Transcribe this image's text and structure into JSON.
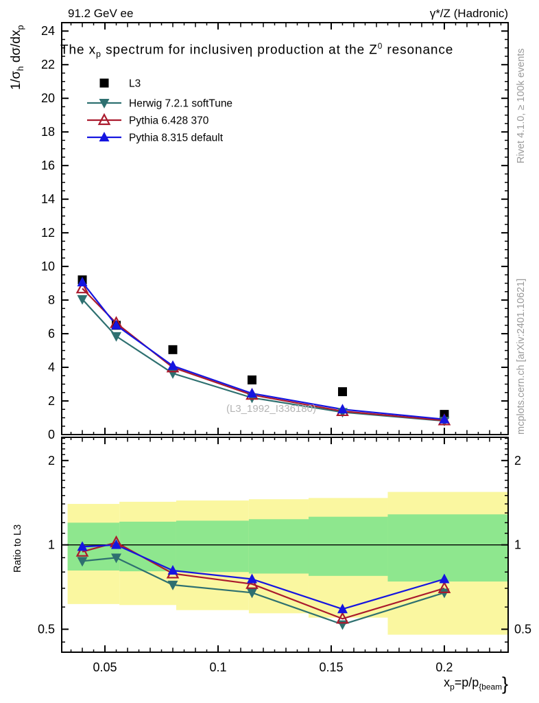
{
  "header": {
    "left_label": "91.2 GeV ee",
    "right_label": "γ*/Z (Hadronic)"
  },
  "side_captions": {
    "right_top": "Rivet 4.1.0, ≥ 100k events",
    "right_bottom": "mcplots.cern.ch [arXiv:2401.10621]"
  },
  "watermark": "(L3_1992_I336180)",
  "labels": {
    "title_parts": [
      [
        "t",
        "The x"
      ],
      [
        "sub",
        "p"
      ],
      [
        "t",
        " spectrum for inclusiveη production at the Z"
      ],
      [
        "sup",
        "0"
      ],
      [
        "t",
        " resonance"
      ]
    ],
    "ylabel_top_parts": [
      [
        "t",
        "1/σ"
      ],
      [
        "sub",
        "h"
      ],
      [
        "t",
        "  dσ/dx"
      ],
      [
        "sub",
        "p"
      ]
    ],
    "ylabel_ratio": "Ratio to L3",
    "xlabel_parts": [
      [
        "t",
        "x"
      ],
      [
        "sub",
        "p"
      ],
      [
        "t",
        "=p/p"
      ],
      [
        "sub",
        "{beam"
      ],
      [
        "big",
        "}"
      ]
    ]
  },
  "colors": {
    "axis": "#000000",
    "l3": "#000000",
    "herwig": "#2e7070",
    "pythia6": "#aa1a2d",
    "pythia8": "#1515e0",
    "band_yellow": "#FAF7A0",
    "band_green": "#8EE78E",
    "caption_gray": "#9a9a9a",
    "watermark_gray": "#b4b4b4"
  },
  "legend": {
    "items": [
      "L3",
      "Herwig 7.2.1 softTune",
      "Pythia 6.428 370",
      "Pythia 8.315 default"
    ]
  },
  "chart_data": [
    {
      "type": "line",
      "panel": "spectrum",
      "title": "The x_p spectrum for inclusive η production at the Z0 resonance",
      "xlim": [
        0.0309,
        0.2282
      ],
      "ylim": [
        0,
        24.5
      ],
      "x_ticks": {
        "major": [
          0.05,
          0.1,
          0.15,
          0.2
        ],
        "medium_step": 0.01,
        "minor_step": 0.005
      },
      "y_ticks": {
        "major": [
          0,
          2,
          4,
          6,
          8,
          10,
          12,
          14,
          16,
          18,
          20,
          22,
          24
        ],
        "minor_step": 0.5
      },
      "x": [
        0.04,
        0.055,
        0.08,
        0.115,
        0.155,
        0.2
      ],
      "series": [
        {
          "name": "L3",
          "marker": "square",
          "color_key": "l3",
          "line": false,
          "values": [
            9.2,
            6.5,
            5.05,
            3.25,
            2.55,
            1.2
          ]
        },
        {
          "name": "Herwig 7.2.1 softTune",
          "marker": "triangle-down",
          "color_key": "herwig",
          "line": true,
          "values": [
            8.05,
            5.85,
            3.64,
            2.19,
            1.33,
            0.81
          ]
        },
        {
          "name": "Pythia 6.428 370",
          "marker": "triangle-open",
          "color_key": "pythia6",
          "line": true,
          "values": [
            8.69,
            6.63,
            3.99,
            2.36,
            1.39,
            0.84
          ]
        },
        {
          "name": "Pythia 8.315 default",
          "marker": "triangle-up",
          "color_key": "pythia8",
          "line": true,
          "values": [
            9.06,
            6.5,
            4.09,
            2.45,
            1.5,
            0.91
          ]
        }
      ]
    },
    {
      "type": "ratio",
      "panel": "ratio",
      "ylabel": "Ratio to L3",
      "yscale": "log",
      "ylim": [
        0.414,
        2.42
      ],
      "reference_line": 1,
      "y_ticks": {
        "major": [
          0.5,
          1,
          2
        ],
        "major_labels": [
          "0.5",
          "1",
          "2"
        ],
        "minor": [
          0.45,
          0.6,
          0.7,
          0.8,
          0.9,
          1.1,
          1.2,
          1.3,
          1.4,
          1.5,
          1.6,
          1.7,
          1.8,
          1.9,
          2.1,
          2.2,
          2.3,
          2.4
        ]
      },
      "x_tick_labels": [
        "0.05",
        "0.1",
        "0.15",
        "0.2"
      ],
      "x_tick_values": [
        0.05,
        0.1,
        0.15,
        0.2
      ],
      "bands": [
        {
          "x": [
            0.0335,
            0.0564
          ],
          "yellow": [
            0.615,
            1.4
          ],
          "green": [
            0.81,
            1.2
          ]
        },
        {
          "x": [
            0.0564,
            0.0815
          ],
          "yellow": [
            0.61,
            1.425
          ],
          "green": [
            0.805,
            1.21
          ]
        },
        {
          "x": [
            0.0815,
            0.1136
          ],
          "yellow": [
            0.585,
            1.44
          ],
          "green": [
            0.8,
            1.22
          ]
        },
        {
          "x": [
            0.1136,
            0.14
          ],
          "yellow": [
            0.57,
            1.455
          ],
          "green": [
            0.79,
            1.235
          ]
        },
        {
          "x": [
            0.14,
            0.175
          ],
          "yellow": [
            0.55,
            1.47
          ],
          "green": [
            0.775,
            1.26
          ]
        },
        {
          "x": [
            0.175,
            0.228
          ],
          "yellow": [
            0.478,
            1.545
          ],
          "green": [
            0.74,
            1.285
          ]
        }
      ],
      "x": [
        0.04,
        0.055,
        0.08,
        0.115,
        0.155,
        0.2
      ],
      "series": [
        {
          "name": "Herwig 7.2.1 softTune",
          "marker": "triangle-down",
          "color_key": "herwig",
          "values": [
            0.875,
            0.9,
            0.72,
            0.675,
            0.52,
            0.675
          ]
        },
        {
          "name": "Pythia 6.428 370",
          "marker": "triangle-open",
          "color_key": "pythia6",
          "values": [
            0.945,
            1.02,
            0.79,
            0.725,
            0.545,
            0.7
          ]
        },
        {
          "name": "Pythia 8.315 default",
          "marker": "triangle-up",
          "color_key": "pythia8",
          "values": [
            0.985,
            1.0,
            0.81,
            0.755,
            0.59,
            0.755
          ]
        }
      ]
    }
  ]
}
